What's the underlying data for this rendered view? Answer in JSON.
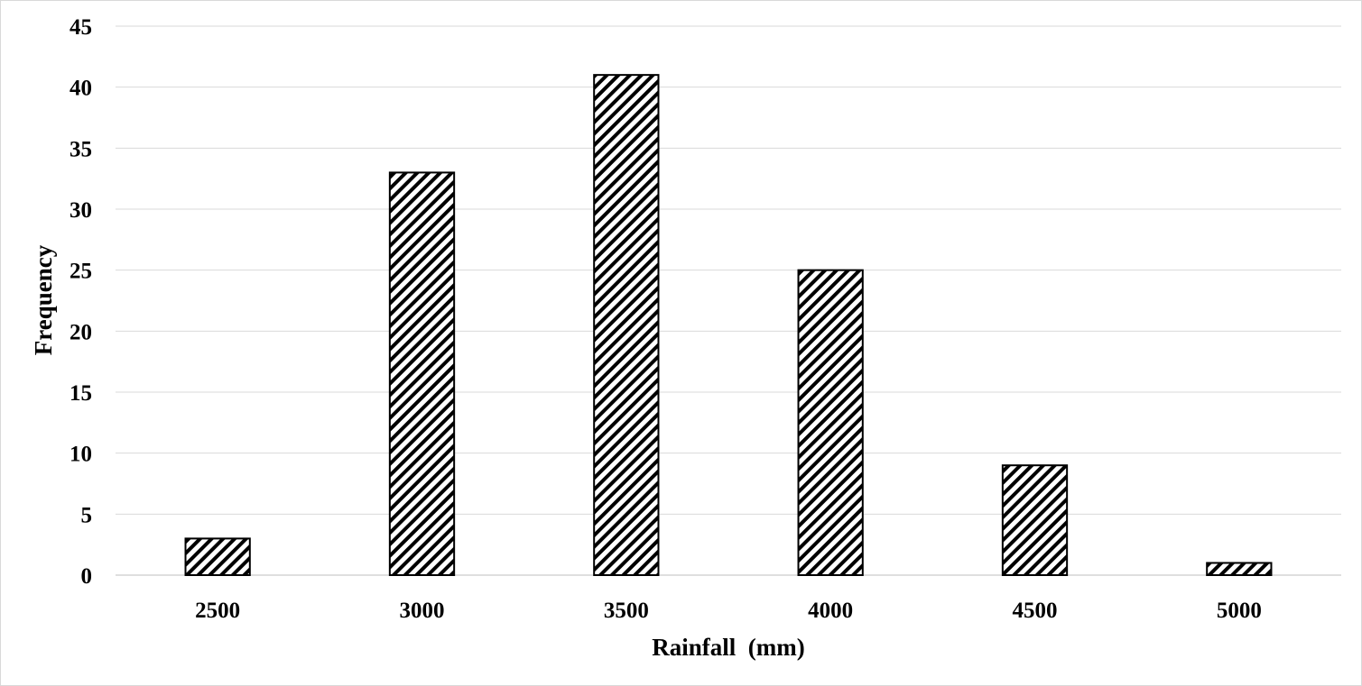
{
  "chart_data": {
    "type": "bar",
    "categories": [
      "2500",
      "3000",
      "3500",
      "4000",
      "4500",
      "5000"
    ],
    "values": [
      3,
      33,
      41,
      25,
      9,
      1
    ],
    "title": "",
    "xlabel": "Rainfall  (mm)",
    "ylabel": "Frequency",
    "ylim": [
      0,
      45
    ],
    "yticks": [
      0,
      5,
      10,
      15,
      20,
      25,
      30,
      35,
      40,
      45
    ],
    "grid": true,
    "legend": "none",
    "colors": {
      "bar_fill_pattern": "diagonal-hatch",
      "bar_stroke": "#000000",
      "hatch": "#000000",
      "gridline": "#d9d9d9",
      "text": "#000000"
    }
  }
}
